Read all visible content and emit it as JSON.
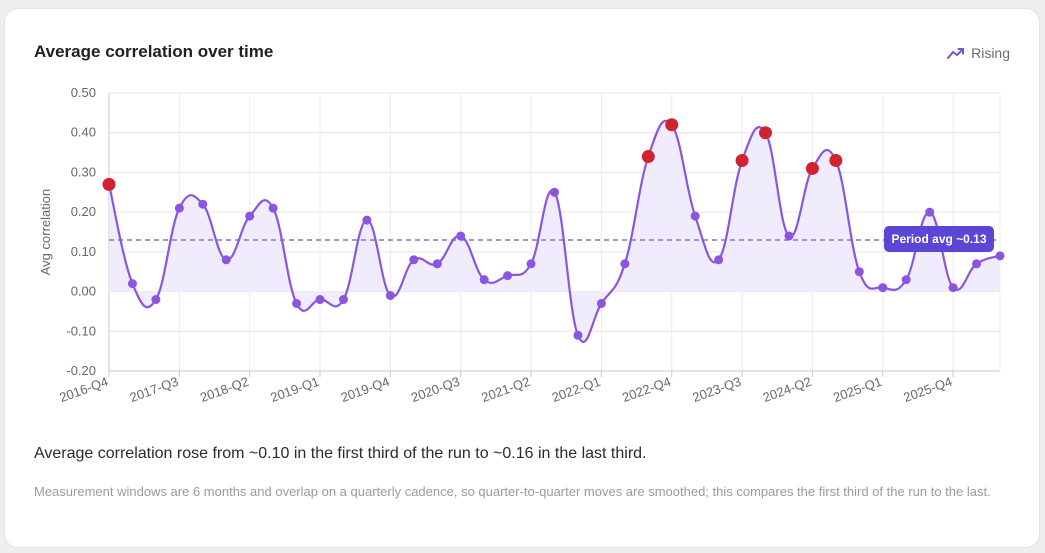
{
  "card": {
    "title": "Average correlation over time",
    "trend_label": "Rising",
    "trend_icon": "trending-up-icon",
    "summary": "Average correlation rose from ~0.10 in the first third of the run to ~0.16 in the last third.",
    "footnote": "Measurement windows are 6 months and overlap on a quarterly cadence, so quarter-to-quarter moves are smoothed; this compares the first third of the run to the last."
  },
  "colors": {
    "line": "#8a55e0",
    "point": "#8a55e0",
    "highlight": "#d0222f",
    "fill": "#f1ecfd",
    "avg_line": "#8a6fd8",
    "badge_bg": "#5a47d6",
    "badge_text": "#ffffff"
  },
  "chart_data": {
    "type": "line",
    "title": "Average correlation over time",
    "ylabel": "Avg correlation",
    "xlabel": "",
    "ylim": [
      -0.2,
      0.5
    ],
    "yticks": [
      "0.50",
      "0.40",
      "0.30",
      "0.20",
      "0.10",
      "0.00",
      "-0.10",
      "-0.20"
    ],
    "ytick_values": [
      0.5,
      0.4,
      0.3,
      0.2,
      0.1,
      0.0,
      -0.1,
      -0.2
    ],
    "grid": true,
    "categories": [
      "2016-Q4",
      "2017-Q1",
      "2017-Q2",
      "2017-Q3",
      "2017-Q4",
      "2018-Q1",
      "2018-Q2",
      "2018-Q3",
      "2018-Q4",
      "2019-Q1",
      "2019-Q2",
      "2019-Q3",
      "2019-Q4",
      "2020-Q1",
      "2020-Q2",
      "2020-Q3",
      "2020-Q4",
      "2021-Q1",
      "2021-Q2",
      "2021-Q3",
      "2021-Q4",
      "2022-Q1",
      "2022-Q2",
      "2022-Q3",
      "2022-Q4",
      "2023-Q1",
      "2023-Q2",
      "2023-Q3",
      "2023-Q4",
      "2024-Q1",
      "2024-Q2",
      "2024-Q3",
      "2024-Q4",
      "2025-Q1",
      "2025-Q2",
      "2025-Q3",
      "2025-Q4",
      "2026-Q1",
      "2026-Q2"
    ],
    "xtick_labels": [
      "2016-Q4",
      "2017-Q3",
      "2018-Q2",
      "2019-Q1",
      "2019-Q4",
      "2020-Q3",
      "2021-Q2",
      "2022-Q1",
      "2022-Q4",
      "2023-Q3",
      "2024-Q2",
      "2025-Q1",
      "2025-Q4"
    ],
    "series": [
      {
        "values": [
          0.27,
          0.02,
          -0.02,
          0.21,
          0.22,
          0.08,
          0.19,
          0.21,
          -0.03,
          -0.02,
          -0.02,
          0.18,
          -0.01,
          0.08,
          0.07,
          0.14,
          0.03,
          0.04,
          0.07,
          0.25,
          -0.11,
          -0.03,
          0.07,
          0.34,
          0.42,
          0.19,
          0.08,
          0.33,
          0.4,
          0.14,
          0.31,
          0.33,
          0.05,
          0.01,
          0.03,
          0.2,
          0.01,
          0.07,
          0.09
        ]
      }
    ],
    "highlight_threshold": 0.26,
    "reference_line": {
      "value": 0.13,
      "label": "Period avg ~0.13",
      "style": "dashed"
    }
  }
}
